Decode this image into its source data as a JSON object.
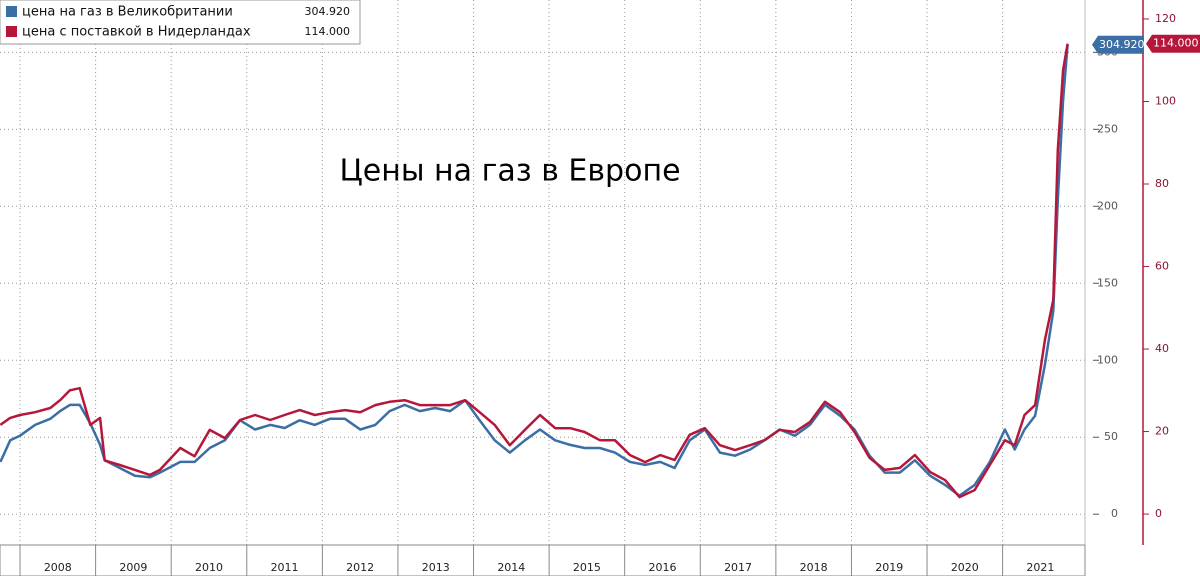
{
  "chart_data": {
    "type": "line",
    "title": "Цены на газ в Европе",
    "x": [
      2007.74,
      2007.87,
      2008.0,
      2008.2,
      2008.4,
      2008.53,
      2008.66,
      2008.79,
      2008.93,
      2009.06,
      2009.12,
      2009.32,
      2009.52,
      2009.72,
      2009.85,
      2010.12,
      2010.31,
      2010.51,
      2010.71,
      2010.91,
      2011.11,
      2011.31,
      2011.5,
      2011.7,
      2011.9,
      2012.1,
      2012.3,
      2012.5,
      2012.7,
      2012.89,
      2013.09,
      2013.29,
      2013.49,
      2013.69,
      2013.89,
      2014.08,
      2014.28,
      2014.48,
      2014.68,
      2014.88,
      2015.08,
      2015.28,
      2015.47,
      2015.67,
      2015.87,
      2016.07,
      2016.27,
      2016.47,
      2016.66,
      2016.86,
      2017.06,
      2017.26,
      2017.46,
      2017.66,
      2017.85,
      2018.05,
      2018.25,
      2018.45,
      2018.65,
      2018.85,
      2019.04,
      2019.24,
      2019.44,
      2019.64,
      2019.84,
      2020.04,
      2020.24,
      2020.43,
      2020.63,
      2020.83,
      2021.03,
      2021.16,
      2021.29,
      2021.43,
      2021.56,
      2021.67,
      2021.73,
      2021.8,
      2021.86
    ],
    "series": [
      {
        "name": "цена на газ в Великобритании",
        "color": "#3a6ea5",
        "last_value_label": "304.920",
        "values": [
          34,
          48,
          51,
          58,
          62,
          67,
          71,
          71,
          59,
          45,
          35,
          30,
          25,
          24,
          27,
          34,
          34,
          43,
          48,
          61,
          55,
          58,
          56,
          61,
          58,
          62,
          62,
          55,
          58,
          67,
          71,
          67,
          69,
          67,
          74,
          61,
          48,
          40,
          48,
          55,
          48,
          45,
          43,
          43,
          40,
          34,
          32,
          34,
          30,
          48,
          55,
          40,
          38,
          42,
          48,
          55,
          51,
          58,
          71,
          64,
          55,
          38,
          27,
          27,
          35,
          25,
          19,
          12,
          19,
          34,
          55,
          42,
          55,
          64,
          97,
          132,
          204,
          269,
          304.92
        ]
      },
      {
        "name": "цена с поставкой в Нидерландах",
        "color": "#b5173a",
        "axis": "y2",
        "last_value_label": "114.000",
        "values": [
          21.6,
          23.3,
          24,
          24.7,
          25.7,
          27.6,
          30,
          30.5,
          21.6,
          23.3,
          13,
          11.9,
          10.7,
          9.5,
          10.7,
          16,
          14,
          20.4,
          18.4,
          22.8,
          24,
          22.8,
          24,
          25.2,
          24,
          24.7,
          25.2,
          24.7,
          26.4,
          27.2,
          27.6,
          26.4,
          26.4,
          26.4,
          27.6,
          24.7,
          21.6,
          16.7,
          20.4,
          24,
          20.8,
          20.8,
          19.9,
          17.9,
          17.9,
          14.3,
          12.6,
          14.3,
          13.1,
          19.2,
          20.8,
          16.7,
          15.5,
          16.7,
          17.9,
          20.4,
          19.9,
          22.3,
          27.2,
          24.7,
          19.9,
          13.6,
          10.7,
          11.2,
          14.3,
          10.2,
          8.2,
          4.1,
          5.8,
          11.9,
          17.9,
          16.7,
          24,
          26.4,
          42.2,
          51.9,
          88.2,
          107.6,
          114
        ]
      }
    ],
    "xlim": [
      2007.735,
      2022.09
    ],
    "xticks": [
      2008,
      2009,
      2010,
      2011,
      2012,
      2013,
      2014,
      2015,
      2016,
      2017,
      2018,
      2019,
      2020,
      2021
    ],
    "ylim": [
      -20,
      334
    ],
    "yticks": [
      0,
      50,
      100,
      150,
      200,
      250,
      300
    ],
    "y2lim": [
      -7.5,
      124.6
    ],
    "y2ticks": [
      0,
      20,
      40,
      60,
      80,
      100,
      120
    ],
    "grid": true,
    "legend": "upper left"
  }
}
